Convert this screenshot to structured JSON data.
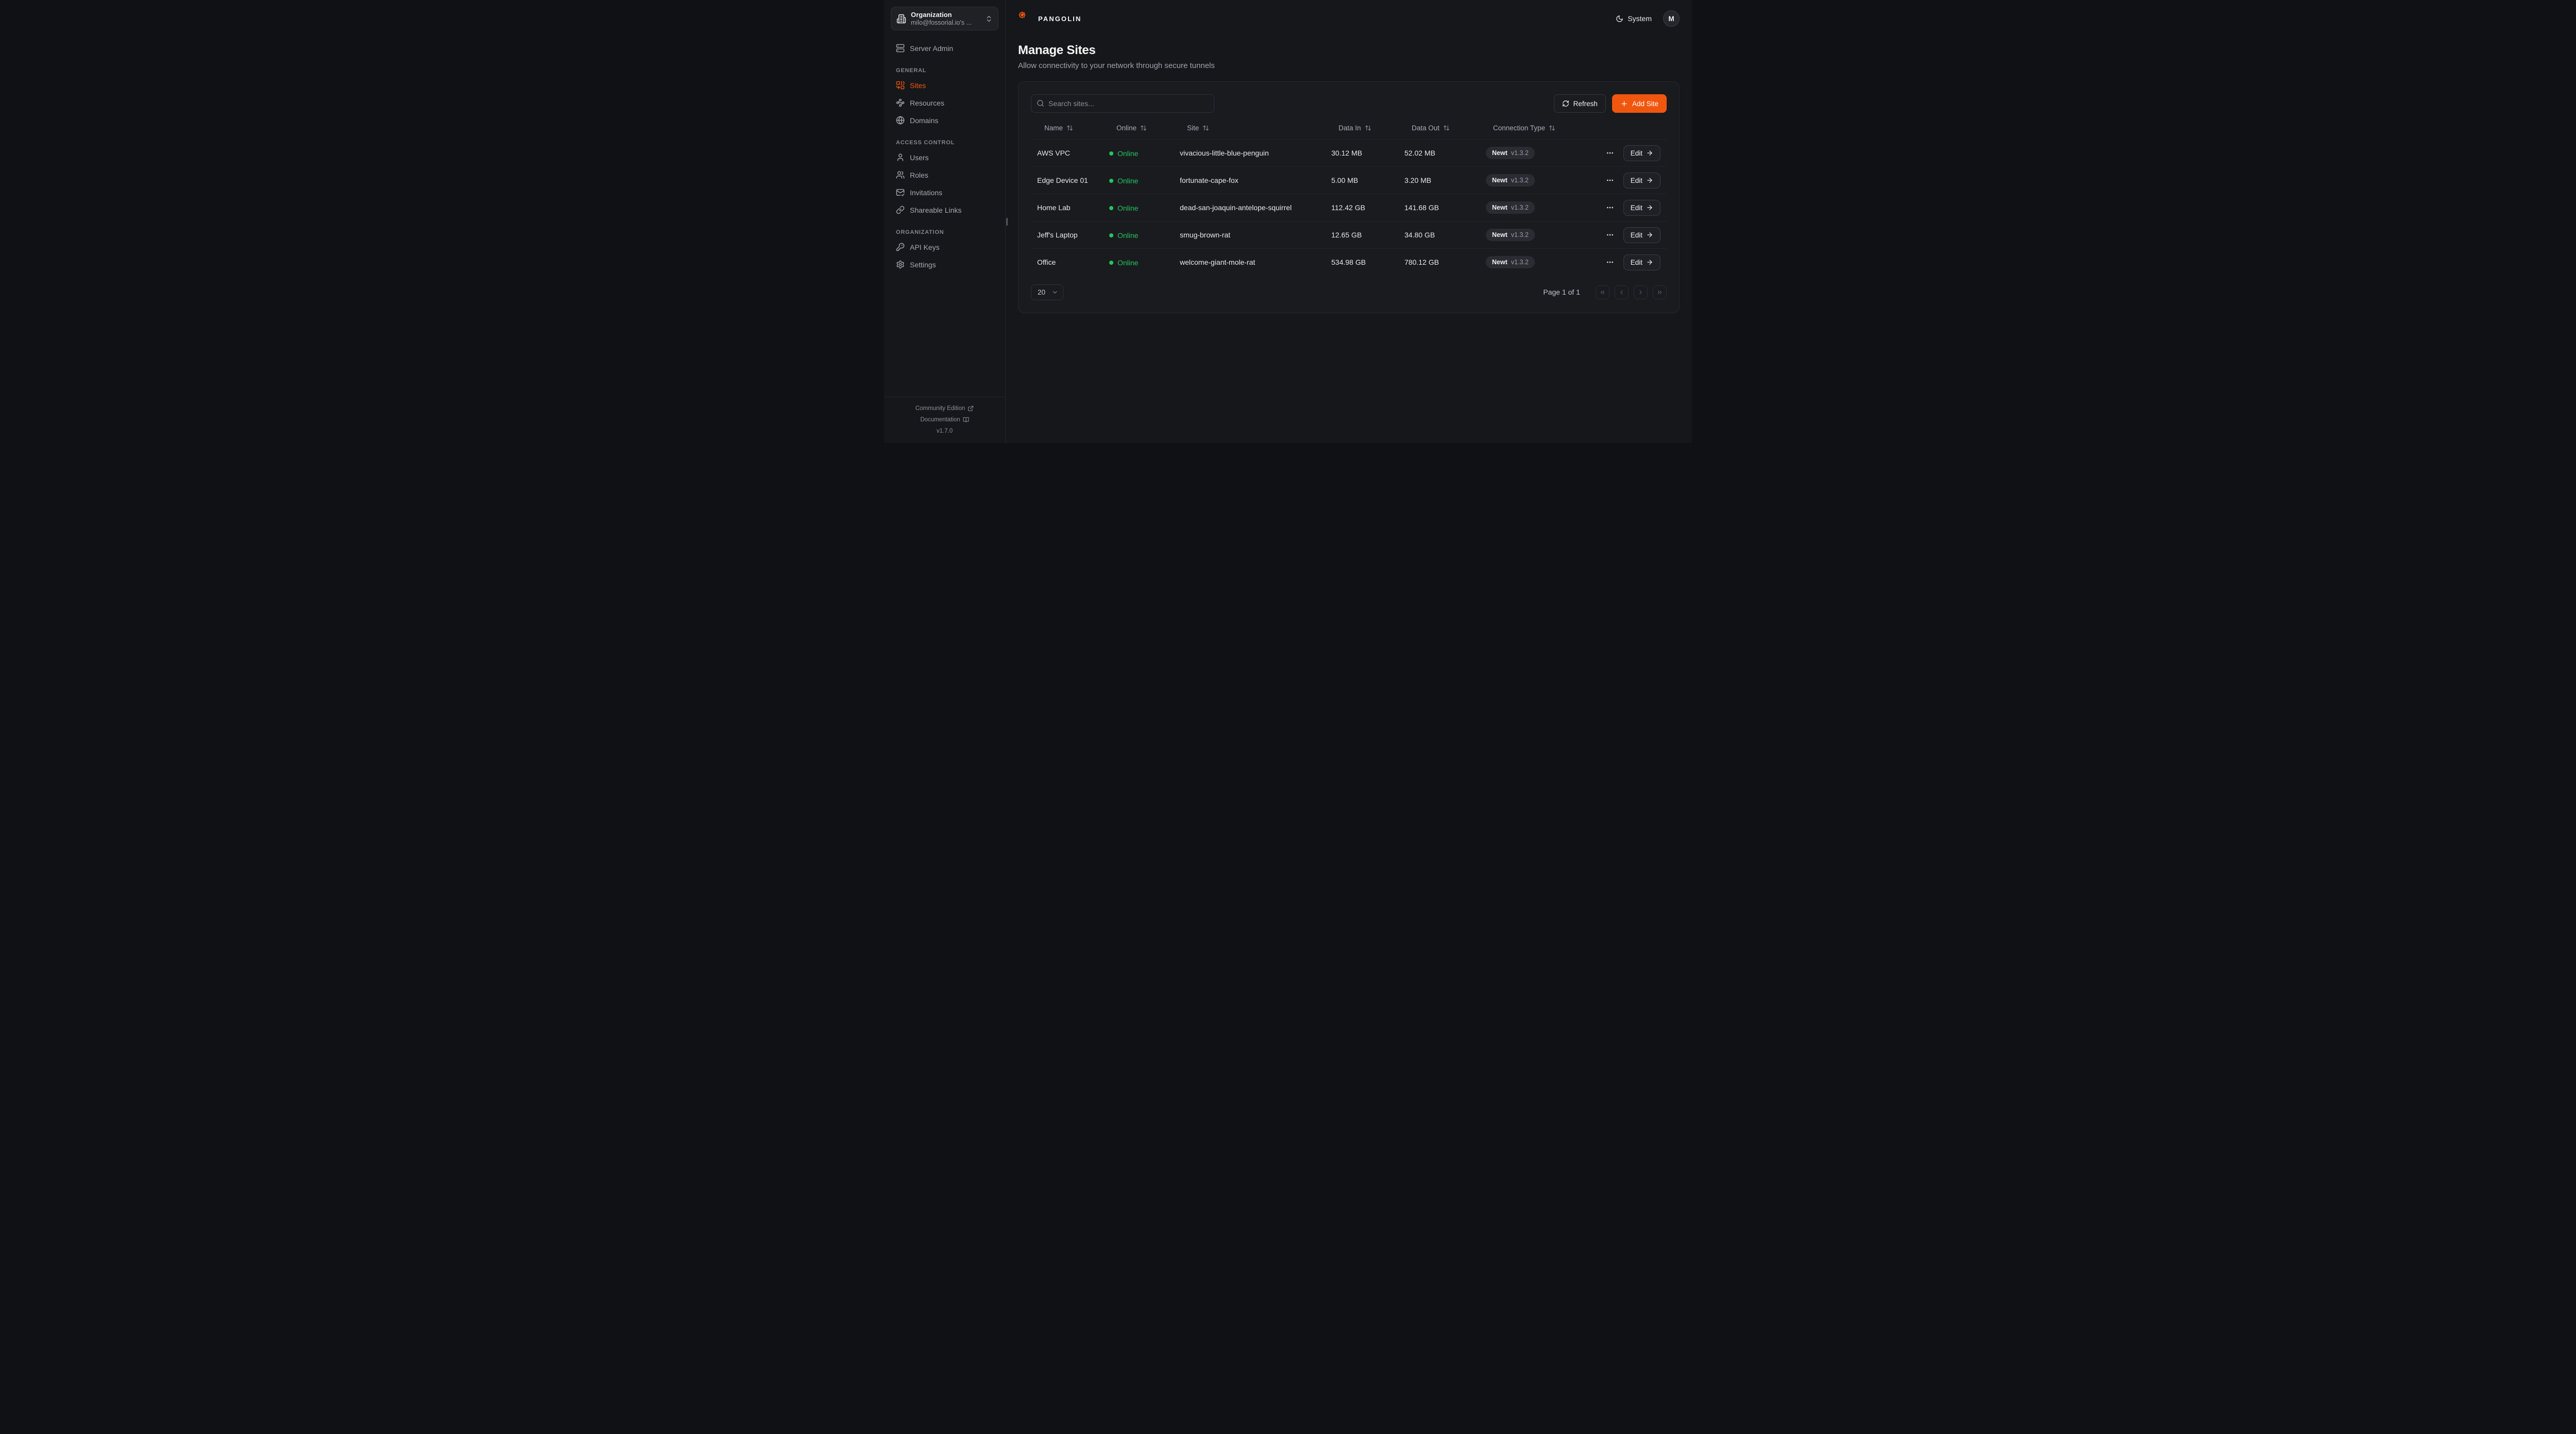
{
  "brand": {
    "name": "PANGOLIN",
    "logo_icon": "pangolin-logo"
  },
  "org_switcher": {
    "title": "Organization",
    "subtitle": "milo@fossorial.io's ...",
    "icon": "building-icon",
    "chevron_icon": "chevrons-up-down-icon"
  },
  "topbar": {
    "theme": {
      "icon": "moon-icon",
      "label": "System"
    },
    "avatar": {
      "initial": "M"
    }
  },
  "sidebar": {
    "standalone": [
      {
        "id": "server-admin",
        "label": "Server Admin",
        "icon": "server-icon",
        "active": false
      }
    ],
    "sections": [
      {
        "title": "GENERAL",
        "items": [
          {
            "id": "sites",
            "label": "Sites",
            "icon": "sites-icon",
            "active": true
          },
          {
            "id": "resources",
            "label": "Resources",
            "icon": "waypoints-icon",
            "active": false
          },
          {
            "id": "domains",
            "label": "Domains",
            "icon": "globe-icon",
            "active": false
          }
        ]
      },
      {
        "title": "ACCESS CONTROL",
        "items": [
          {
            "id": "users",
            "label": "Users",
            "icon": "user-icon",
            "active": false
          },
          {
            "id": "roles",
            "label": "Roles",
            "icon": "users-icon",
            "active": false
          },
          {
            "id": "invitations",
            "label": "Invitations",
            "icon": "mail-check-icon",
            "active": false
          },
          {
            "id": "shareable-links",
            "label": "Shareable Links",
            "icon": "link-icon",
            "active": false
          }
        ]
      },
      {
        "title": "ORGANIZATION",
        "items": [
          {
            "id": "api-keys",
            "label": "API Keys",
            "icon": "key-icon",
            "active": false
          },
          {
            "id": "settings",
            "label": "Settings",
            "icon": "gear-icon",
            "active": false
          }
        ]
      }
    ],
    "footer": {
      "links": [
        {
          "label": "Community Edition",
          "icon": "external-link-icon"
        },
        {
          "label": "Documentation",
          "icon": "book-open-icon"
        }
      ],
      "version": "v1.7.0"
    }
  },
  "page": {
    "title": "Manage Sites",
    "subtitle": "Allow connectivity to your network through secure tunnels"
  },
  "toolbar": {
    "search_placeholder": "Search sites...",
    "refresh_label": "Refresh",
    "add_label": "Add Site"
  },
  "table": {
    "columns": [
      {
        "label": "Name",
        "sortable": true
      },
      {
        "label": "Online",
        "sortable": true
      },
      {
        "label": "Site",
        "sortable": true
      },
      {
        "label": "Data In",
        "sortable": true
      },
      {
        "label": "Data Out",
        "sortable": true
      },
      {
        "label": "Connection Type",
        "sortable": true
      }
    ],
    "rows": [
      {
        "name": "AWS VPC",
        "status": "Online",
        "site": "vivacious-little-blue-penguin",
        "data_in": "30.12 MB",
        "data_out": "52.02 MB",
        "client": "Newt",
        "version": "v1.3.2",
        "edit_label": "Edit"
      },
      {
        "name": "Edge Device 01",
        "status": "Online",
        "site": "fortunate-cape-fox",
        "data_in": "5.00 MB",
        "data_out": "3.20 MB",
        "client": "Newt",
        "version": "v1.3.2",
        "edit_label": "Edit"
      },
      {
        "name": "Home Lab",
        "status": "Online",
        "site": "dead-san-joaquin-antelope-squirrel",
        "data_in": "112.42 GB",
        "data_out": "141.68 GB",
        "client": "Newt",
        "version": "v1.3.2",
        "edit_label": "Edit"
      },
      {
        "name": "Jeff's Laptop",
        "status": "Online",
        "site": "smug-brown-rat",
        "data_in": "12.65 GB",
        "data_out": "34.80 GB",
        "client": "Newt",
        "version": "v1.3.2",
        "edit_label": "Edit"
      },
      {
        "name": "Office",
        "status": "Online",
        "site": "welcome-giant-mole-rat",
        "data_in": "534.98 GB",
        "data_out": "780.12 GB",
        "client": "Newt",
        "version": "v1.3.2",
        "edit_label": "Edit"
      }
    ]
  },
  "pagination": {
    "page_size": "20",
    "status": "Page 1 of 1"
  },
  "colors": {
    "accent": "#f1560f",
    "online_green": "#22c55e",
    "background": "#16171a",
    "panel": "#1a1b1f"
  }
}
